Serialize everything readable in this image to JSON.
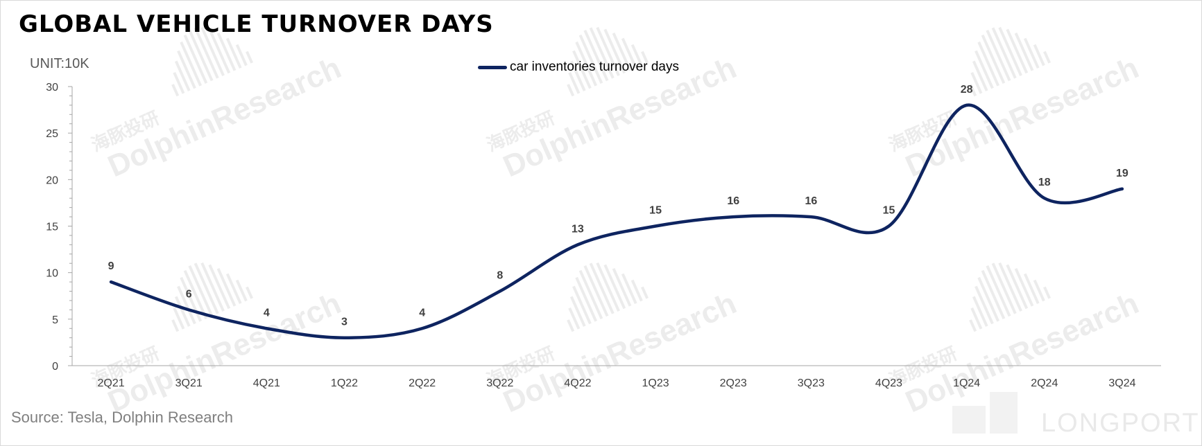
{
  "title": "GLOBAL VEHICLE TURNOVER DAYS",
  "unit_label": "UNIT:10K",
  "source": "Source: Tesla, Dolphin Research",
  "watermark": {
    "brand": "DolphinResearch",
    "brand_cn": "海豚投研",
    "footer_brand": "LONGPORT"
  },
  "colors": {
    "series": "#0e2460",
    "axis": "#a6a6a6",
    "text": "#404040",
    "watermark": "#ececec"
  },
  "chart_data": {
    "type": "line",
    "title": "GLOBAL VEHICLE TURNOVER DAYS",
    "ylabel": "UNIT:10K",
    "xlabel": "",
    "categories": [
      "2Q21",
      "3Q21",
      "4Q21",
      "1Q22",
      "2Q22",
      "3Q22",
      "4Q22",
      "1Q23",
      "2Q23",
      "3Q23",
      "4Q23",
      "1Q24",
      "2Q24",
      "3Q24"
    ],
    "series": [
      {
        "name": "car inventories turnover days",
        "values": [
          9,
          6,
          4,
          3,
          4,
          8,
          13,
          15,
          16,
          16,
          15,
          28,
          18,
          19
        ]
      }
    ],
    "ylim": [
      0,
      30
    ],
    "yticks": [
      0,
      5,
      10,
      15,
      20,
      25,
      30
    ],
    "smooth": true,
    "grid": false,
    "legend_position": "top-center",
    "data_labels": true
  }
}
